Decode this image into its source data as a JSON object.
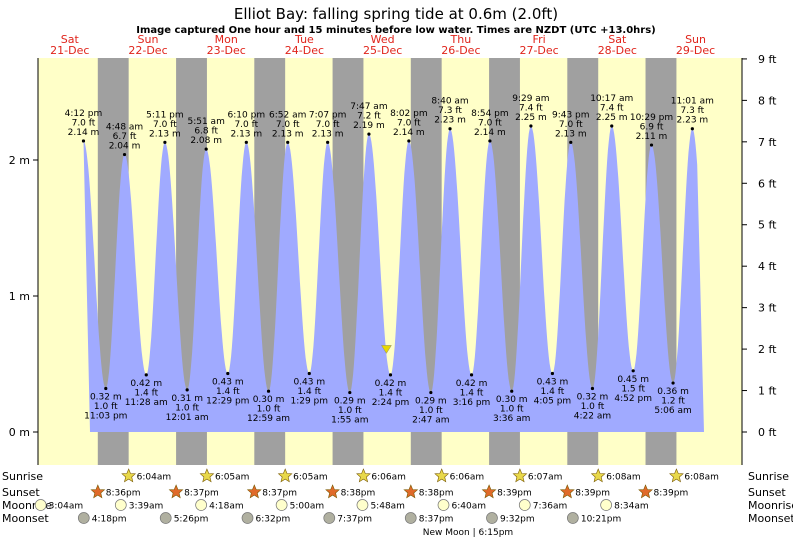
{
  "title": "Elliot Bay: falling  spring tide at 0.6m (2.0ft)",
  "subtitle": "Image captured One hour and 15 minutes before low water. Times are NZDT (UTC +13.0hrs)",
  "colors": {
    "day_bg": "#ffffc8",
    "night_bg": "#a0a0a0",
    "tide_fill": "#a0aaff",
    "day_label": "#e0241b",
    "sun_star": "#e8d84a",
    "sunset_star": "#e06a2a",
    "moonrise": "#ffffcc",
    "moonset": "#b0b0a0",
    "marker": "#e8d800"
  },
  "days": [
    {
      "name": "Sat",
      "date": "21-Dec"
    },
    {
      "name": "Sun",
      "date": "22-Dec"
    },
    {
      "name": "Mon",
      "date": "23-Dec"
    },
    {
      "name": "Tue",
      "date": "24-Dec"
    },
    {
      "name": "Wed",
      "date": "25-Dec"
    },
    {
      "name": "Thu",
      "date": "26-Dec"
    },
    {
      "name": "Fri",
      "date": "27-Dec"
    },
    {
      "name": "Sat",
      "date": "28-Dec"
    },
    {
      "name": "Sun",
      "date": "29-Dec"
    }
  ],
  "chart_data": {
    "type": "area",
    "title": "Elliot Bay: falling  spring tide at 0.6m (2.0ft)",
    "y_left": {
      "unit": "m",
      "range": [
        -0.1,
        2.8
      ],
      "ticks": [
        {
          "v": 0,
          "label": "0 m"
        },
        {
          "v": 1,
          "label": "1 m"
        },
        {
          "v": 2,
          "label": "2 m"
        }
      ]
    },
    "y_right": {
      "unit": "ft",
      "ticks": [
        {
          "v": 0,
          "label": "0 ft"
        },
        {
          "v": 1,
          "label": "1 ft"
        },
        {
          "v": 2,
          "label": "2 ft"
        },
        {
          "v": 3,
          "label": "3 ft"
        },
        {
          "v": 4,
          "label": "4 ft"
        },
        {
          "v": 5,
          "label": "5 ft"
        },
        {
          "v": 6,
          "label": "6 ft"
        },
        {
          "v": 7,
          "label": "7 ft"
        },
        {
          "v": 8,
          "label": "8 ft"
        },
        {
          "v": 9,
          "label": "9 ft"
        }
      ]
    },
    "x_range_hours": [
      0,
      216
    ],
    "series": [
      {
        "kind": "high",
        "day": 0,
        "time": "4:12 pm",
        "ft": "7.0 ft",
        "m": "2.14 m",
        "value": 2.14
      },
      {
        "kind": "low",
        "day": 0,
        "time": "11:03 pm",
        "ft": "1.0 ft",
        "m": "0.32 m",
        "value": 0.32
      },
      {
        "kind": "high",
        "day": 1,
        "time": "4:48 am",
        "ft": "6.7 ft",
        "m": "2.04 m",
        "value": 2.04
      },
      {
        "kind": "low",
        "day": 1,
        "time": "11:28 am",
        "ft": "1.4 ft",
        "m": "0.42 m",
        "value": 0.42
      },
      {
        "kind": "high",
        "day": 1,
        "time": "5:11 pm",
        "ft": "7.0 ft",
        "m": "2.13 m",
        "value": 2.13
      },
      {
        "kind": "low",
        "day": 2,
        "time": "12:01 am",
        "ft": "1.0 ft",
        "m": "0.31 m",
        "value": 0.31
      },
      {
        "kind": "high",
        "day": 2,
        "time": "5:51 am",
        "ft": "6.8 ft",
        "m": "2.08 m",
        "value": 2.08
      },
      {
        "kind": "low",
        "day": 2,
        "time": "12:29 pm",
        "ft": "1.4 ft",
        "m": "0.43 m",
        "value": 0.43
      },
      {
        "kind": "high",
        "day": 2,
        "time": "6:10 pm",
        "ft": "7.0 ft",
        "m": "2.13 m",
        "value": 2.13
      },
      {
        "kind": "low",
        "day": 3,
        "time": "12:59 am",
        "ft": "1.0 ft",
        "m": "0.30 m",
        "value": 0.3
      },
      {
        "kind": "high",
        "day": 3,
        "time": "6:52 am",
        "ft": "7.0 ft",
        "m": "2.13 m",
        "value": 2.13
      },
      {
        "kind": "low",
        "day": 3,
        "time": "1:29 pm",
        "ft": "1.4 ft",
        "m": "0.43 m",
        "value": 0.43
      },
      {
        "kind": "high",
        "day": 3,
        "time": "7:07 pm",
        "ft": "7.0 ft",
        "m": "2.13 m",
        "value": 2.13
      },
      {
        "kind": "low",
        "day": 4,
        "time": "1:55 am",
        "ft": "1.0 ft",
        "m": "0.29 m",
        "value": 0.29
      },
      {
        "kind": "high",
        "day": 4,
        "time": "7:47 am",
        "ft": "7.2 ft",
        "m": "2.19 m",
        "value": 2.19
      },
      {
        "kind": "low",
        "day": 4,
        "time": "2:24 pm",
        "ft": "1.4 ft",
        "m": "0.42 m",
        "value": 0.42
      },
      {
        "kind": "high",
        "day": 4,
        "time": "8:02 pm",
        "ft": "7.0 ft",
        "m": "2.14 m",
        "value": 2.14
      },
      {
        "kind": "low",
        "day": 5,
        "time": "2:47 am",
        "ft": "1.0 ft",
        "m": "0.29 m",
        "value": 0.29
      },
      {
        "kind": "high",
        "day": 5,
        "time": "8:40 am",
        "ft": "7.3 ft",
        "m": "2.23 m",
        "value": 2.23
      },
      {
        "kind": "low",
        "day": 5,
        "time": "3:16 pm",
        "ft": "1.4 ft",
        "m": "0.42 m",
        "value": 0.42
      },
      {
        "kind": "high",
        "day": 5,
        "time": "8:54 pm",
        "ft": "7.0 ft",
        "m": "2.14 m",
        "value": 2.14
      },
      {
        "kind": "low",
        "day": 6,
        "time": "3:36 am",
        "ft": "1.0 ft",
        "m": "0.30 m",
        "value": 0.3
      },
      {
        "kind": "high",
        "day": 6,
        "time": "9:29 am",
        "ft": "7.4 ft",
        "m": "2.25 m",
        "value": 2.25
      },
      {
        "kind": "low",
        "day": 6,
        "time": "4:05 pm",
        "ft": "1.4 ft",
        "m": "0.43 m",
        "value": 0.43
      },
      {
        "kind": "high",
        "day": 6,
        "time": "9:43 pm",
        "ft": "7.0 ft",
        "m": "2.13 m",
        "value": 2.13
      },
      {
        "kind": "low",
        "day": 7,
        "time": "4:22 am",
        "ft": "1.0 ft",
        "m": "0.32 m",
        "value": 0.32
      },
      {
        "kind": "high",
        "day": 7,
        "time": "10:17 am",
        "ft": "7.4 ft",
        "m": "2.25 m",
        "value": 2.25
      },
      {
        "kind": "low",
        "day": 7,
        "time": "4:52 pm",
        "ft": "1.5 ft",
        "m": "0.45 m",
        "value": 0.45
      },
      {
        "kind": "high",
        "day": 7,
        "time": "10:29 pm",
        "ft": "6.9 ft",
        "m": "2.11 m",
        "value": 2.11
      },
      {
        "kind": "low",
        "day": 8,
        "time": "5:06 am",
        "ft": "1.2 ft",
        "m": "0.36 m",
        "value": 0.36
      },
      {
        "kind": "high",
        "day": 8,
        "time": "11:01 am",
        "ft": "7.3 ft",
        "m": "2.23 m",
        "value": 2.23
      }
    ],
    "current": {
      "value": 0.6,
      "label": "falling"
    },
    "grid": false
  },
  "astro": {
    "row_labels": {
      "sunrise": "Sunrise",
      "sunset": "Sunset",
      "moonrise": "Moonrise",
      "moonset": "Moonset"
    },
    "sunrise": [
      {
        "day": 1,
        "time": "6:04am"
      },
      {
        "day": 2,
        "time": "6:05am"
      },
      {
        "day": 3,
        "time": "6:05am"
      },
      {
        "day": 4,
        "time": "6:06am"
      },
      {
        "day": 5,
        "time": "6:06am"
      },
      {
        "day": 6,
        "time": "6:07am"
      },
      {
        "day": 7,
        "time": "6:08am"
      },
      {
        "day": 8,
        "time": "6:08am"
      }
    ],
    "sunset": [
      {
        "day": 0,
        "time": "8:36pm"
      },
      {
        "day": 1,
        "time": "8:37pm"
      },
      {
        "day": 2,
        "time": "8:37pm"
      },
      {
        "day": 3,
        "time": "8:38pm"
      },
      {
        "day": 4,
        "time": "8:38pm"
      },
      {
        "day": 5,
        "time": "8:39pm"
      },
      {
        "day": 6,
        "time": "8:39pm"
      },
      {
        "day": 7,
        "time": "8:39pm"
      }
    ],
    "moonrise": [
      {
        "day": 0,
        "time": "3:04am"
      },
      {
        "day": 1,
        "time": "3:39am"
      },
      {
        "day": 2,
        "time": "4:18am"
      },
      {
        "day": 3,
        "time": "5:00am"
      },
      {
        "day": 4,
        "time": "5:48am"
      },
      {
        "day": 5,
        "time": "6:40am"
      },
      {
        "day": 6,
        "time": "7:36am"
      },
      {
        "day": 7,
        "time": "8:34am"
      }
    ],
    "moonset": [
      {
        "day": 0,
        "time": "4:18pm"
      },
      {
        "day": 1,
        "time": "5:26pm"
      },
      {
        "day": 2,
        "time": "6:32pm"
      },
      {
        "day": 3,
        "time": "7:37pm"
      },
      {
        "day": 4,
        "time": "8:37pm"
      },
      {
        "day": 5,
        "time": "9:32pm"
      },
      {
        "day": 6,
        "time": "10:21pm"
      }
    ],
    "new_moon": "New Moon | 6:15pm"
  }
}
